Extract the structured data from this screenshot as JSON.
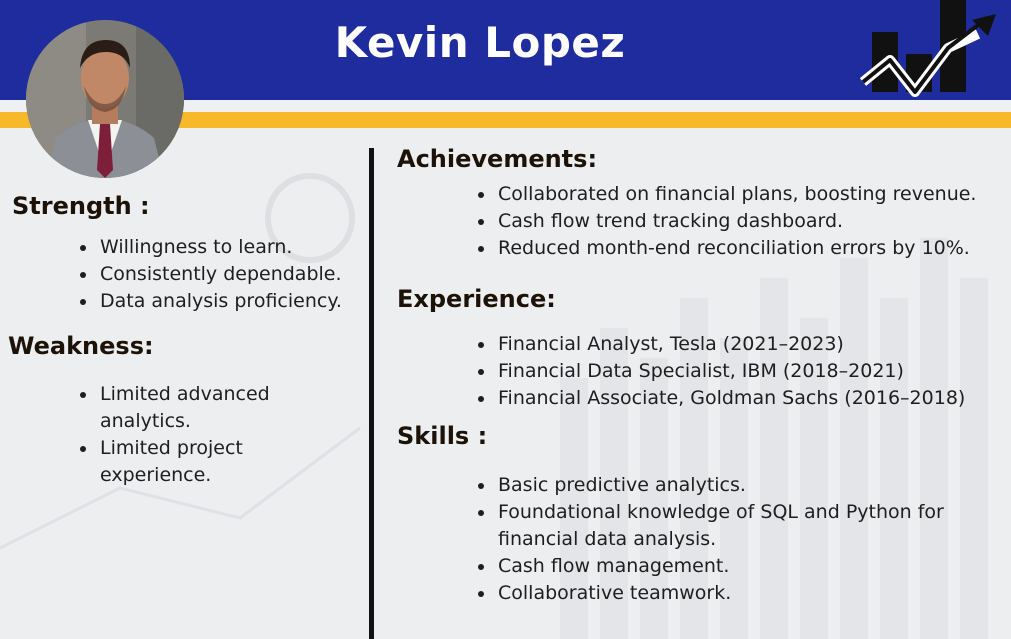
{
  "header": {
    "name": "Kevin Lopez"
  },
  "colors": {
    "header_blue": "#1e2c9e",
    "accent_yellow": "#f7b929",
    "background": "#eceef0"
  },
  "icons": {
    "avatar": "professional-portrait",
    "logo": "bar-chart-growth-arrow-icon"
  },
  "strength": {
    "title": "Strength :",
    "items": [
      "Willingness to learn.",
      "Consistently dependable.",
      "Data analysis proficiency."
    ]
  },
  "weakness": {
    "title": "Weakness:",
    "items": [
      "Limited advanced analytics.",
      "Limited project experience."
    ]
  },
  "achievements": {
    "title": "Achievements:",
    "items": [
      "Collaborated on financial plans, boosting revenue.",
      "Cash flow trend tracking dashboard.",
      "Reduced month-end reconciliation errors by 10%."
    ]
  },
  "experience": {
    "title": "Experience:",
    "items": [
      "Financial Analyst, Tesla (2021–2023)",
      "Financial Data Specialist, IBM (2018–2021)",
      "Financial Associate, Goldman Sachs (2016–2018)"
    ]
  },
  "skills": {
    "title": "Skills :",
    "items": [
      "Basic predictive analytics.",
      "Foundational knowledge of SQL and Python for financial data analysis.",
      "Cash flow management.",
      "Collaborative teamwork."
    ]
  }
}
